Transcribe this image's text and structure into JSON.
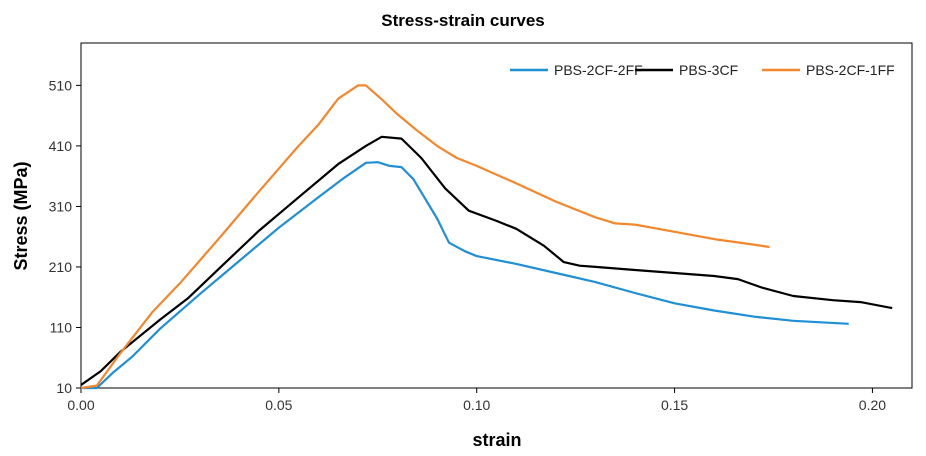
{
  "chart_data": {
    "type": "line",
    "title": "Stress-strain curves",
    "xlabel": "strain",
    "ylabel": "Stress (MPa)",
    "xlim": [
      0,
      0.21
    ],
    "ylim": [
      10,
      580
    ],
    "x_ticks": [
      0.0,
      0.05,
      0.1,
      0.15,
      0.2
    ],
    "x_tick_labels": [
      "0.00",
      "0.05",
      "0.10",
      "0.15",
      "0.20"
    ],
    "y_ticks": [
      10,
      110,
      210,
      310,
      410,
      510
    ],
    "y_tick_labels": [
      "10",
      "110",
      "210",
      "310",
      "410",
      "510"
    ],
    "grid": false,
    "legend_position": "top-right",
    "series": [
      {
        "name": "PBS-2CF-2FF",
        "color": "#1f8fd6",
        "points": [
          [
            0.0,
            10
          ],
          [
            0.004,
            10
          ],
          [
            0.008,
            35
          ],
          [
            0.013,
            62
          ],
          [
            0.02,
            108
          ],
          [
            0.03,
            165
          ],
          [
            0.04,
            220
          ],
          [
            0.05,
            275
          ],
          [
            0.06,
            325
          ],
          [
            0.066,
            355
          ],
          [
            0.072,
            382
          ],
          [
            0.075,
            383
          ],
          [
            0.078,
            377
          ],
          [
            0.081,
            375
          ],
          [
            0.084,
            355
          ],
          [
            0.09,
            290
          ],
          [
            0.093,
            250
          ],
          [
            0.097,
            236
          ],
          [
            0.1,
            228
          ],
          [
            0.11,
            215
          ],
          [
            0.12,
            200
          ],
          [
            0.13,
            185
          ],
          [
            0.14,
            167
          ],
          [
            0.15,
            150
          ],
          [
            0.16,
            138
          ],
          [
            0.17,
            128
          ],
          [
            0.18,
            121
          ],
          [
            0.194,
            116
          ]
        ]
      },
      {
        "name": "PBS-3CF",
        "color": "#000000",
        "points": [
          [
            0.0,
            15
          ],
          [
            0.005,
            38
          ],
          [
            0.01,
            70
          ],
          [
            0.02,
            123
          ],
          [
            0.027,
            158
          ],
          [
            0.035,
            208
          ],
          [
            0.045,
            270
          ],
          [
            0.055,
            325
          ],
          [
            0.065,
            380
          ],
          [
            0.072,
            410
          ],
          [
            0.076,
            425
          ],
          [
            0.081,
            422
          ],
          [
            0.086,
            390
          ],
          [
            0.092,
            340
          ],
          [
            0.098,
            303
          ],
          [
            0.105,
            286
          ],
          [
            0.11,
            273
          ],
          [
            0.117,
            245
          ],
          [
            0.122,
            218
          ],
          [
            0.126,
            212
          ],
          [
            0.13,
            210
          ],
          [
            0.14,
            205
          ],
          [
            0.15,
            200
          ],
          [
            0.16,
            195
          ],
          [
            0.166,
            190
          ],
          [
            0.172,
            176
          ],
          [
            0.18,
            162
          ],
          [
            0.19,
            155
          ],
          [
            0.197,
            152
          ],
          [
            0.205,
            142
          ]
        ]
      },
      {
        "name": "PBS-2CF-1FF",
        "color": "#f4872b",
        "points": [
          [
            0.0,
            10
          ],
          [
            0.004,
            14
          ],
          [
            0.01,
            68
          ],
          [
            0.018,
            135
          ],
          [
            0.025,
            183
          ],
          [
            0.035,
            258
          ],
          [
            0.045,
            335
          ],
          [
            0.055,
            410
          ],
          [
            0.06,
            445
          ],
          [
            0.065,
            488
          ],
          [
            0.07,
            510
          ],
          [
            0.072,
            510
          ],
          [
            0.076,
            487
          ],
          [
            0.08,
            462
          ],
          [
            0.085,
            435
          ],
          [
            0.09,
            410
          ],
          [
            0.095,
            390
          ],
          [
            0.1,
            377
          ],
          [
            0.11,
            348
          ],
          [
            0.12,
            318
          ],
          [
            0.13,
            292
          ],
          [
            0.135,
            282
          ],
          [
            0.14,
            280
          ],
          [
            0.15,
            268
          ],
          [
            0.16,
            256
          ],
          [
            0.17,
            247
          ],
          [
            0.174,
            243
          ]
        ]
      }
    ]
  }
}
